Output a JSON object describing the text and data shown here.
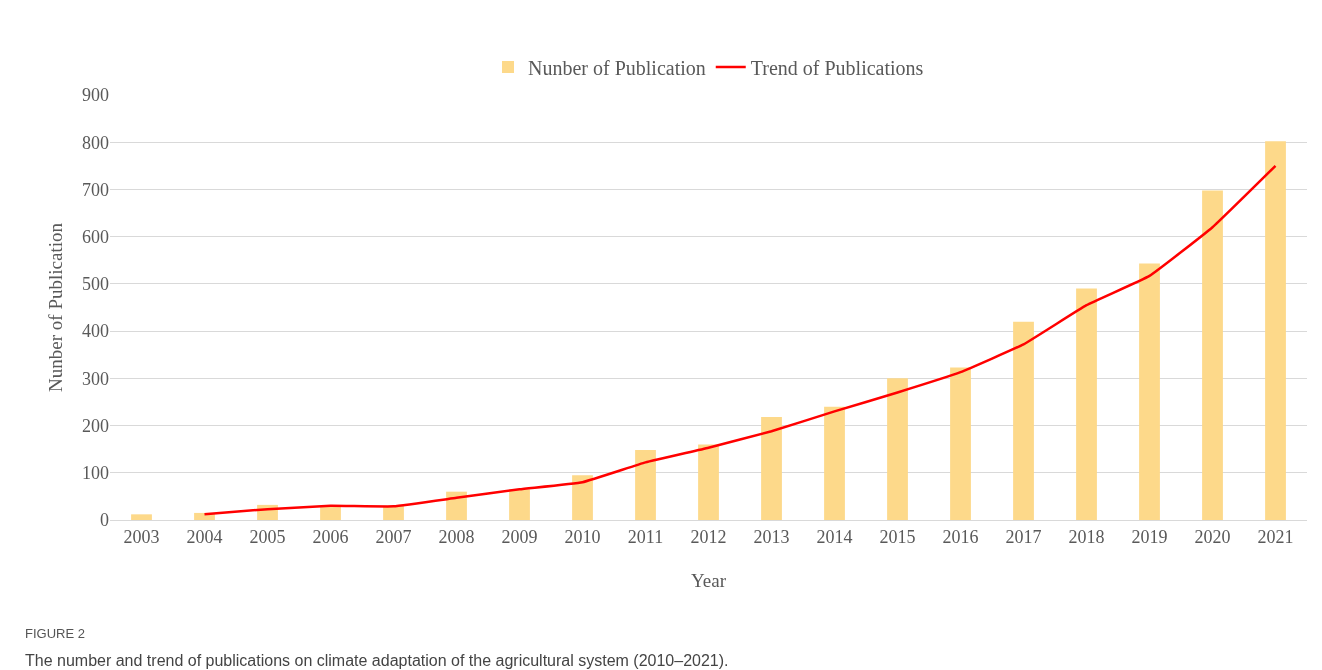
{
  "chart_data": {
    "type": "bar",
    "xlabel": "Year",
    "ylabel": "Nunber of Publication",
    "categories": [
      "2003",
      "2004",
      "2005",
      "2006",
      "2007",
      "2008",
      "2009",
      "2010",
      "2011",
      "2012",
      "2013",
      "2014",
      "2015",
      "2016",
      "2017",
      "2018",
      "2019",
      "2020",
      "2021"
    ],
    "series": [
      {
        "name": "Nunber of Publication",
        "color": "#fdd98a",
        "values": [
          12,
          15,
          32,
          30,
          30,
          60,
          65,
          95,
          148,
          160,
          218,
          240,
          300,
          323,
          420,
          490,
          543,
          698,
          802
        ]
      },
      {
        "name": "Trend of Publications",
        "type": "line",
        "color": "#ff0000",
        "values": [
          null,
          12,
          23,
          30,
          29,
          47,
          65,
          80,
          122,
          153,
          188,
          230,
          270,
          313,
          372,
          455,
          517,
          620,
          750
        ]
      }
    ],
    "ylim": [
      0,
      900
    ],
    "yticks": [
      0,
      100,
      200,
      300,
      400,
      500,
      600,
      700,
      800,
      900
    ],
    "grid": "y",
    "legend": "top",
    "marker": "none",
    "line_style": "solid",
    "annotations": [
      "FIGURE 2",
      "The number and trend of publications on climate adaptation of the agricultural system (2010–2021)."
    ]
  }
}
